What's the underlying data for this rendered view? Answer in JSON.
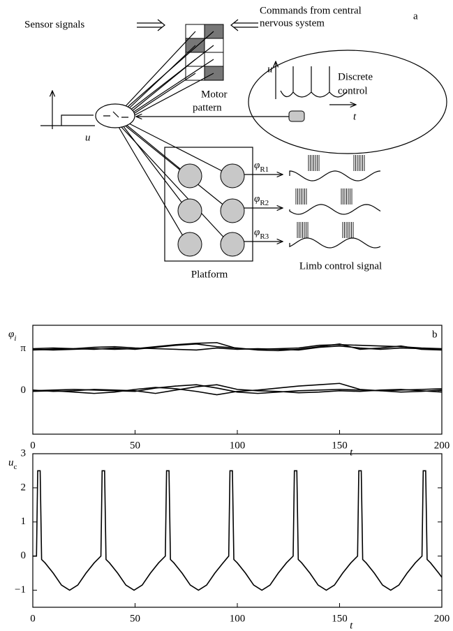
{
  "diagram": {
    "panel_label": "a",
    "sensor_label": "Sensor signals",
    "command_label": [
      "Commands from central",
      "nervous system"
    ],
    "motor_label": [
      "Motor",
      "pattern"
    ],
    "discrete_label": [
      "Discrete",
      "control"
    ],
    "u_label": "u",
    "t_label": "t",
    "phi_symbol": "φ",
    "phi_subscripts": [
      "R1",
      "R2",
      "R3"
    ],
    "platform_label": "Platform",
    "limb_label": "Limb control signal"
  },
  "chart_data": [
    {
      "type": "line",
      "panel_label": "b",
      "ylabel": "φ",
      "ylabel_sub": "i",
      "xlabel": "t",
      "x": [
        0,
        10,
        20,
        30,
        40,
        50,
        60,
        70,
        80,
        90,
        100,
        110,
        120,
        130,
        140,
        150,
        160,
        170,
        180,
        190,
        200
      ],
      "xlim": [
        0,
        200
      ],
      "xticks": [
        0,
        50,
        100,
        150,
        200
      ],
      "ylim": [
        -3.25,
        4.9
      ],
      "yticks": [
        0,
        {
          "value": 3.1416,
          "label": "π"
        }
      ],
      "series": [
        {
          "color": "#000",
          "values": [
            3.05,
            3.1,
            3.15,
            3.25,
            3.3,
            3.2,
            3.15,
            3.1,
            3.05,
            3.2,
            3.1,
            3.15,
            3.1,
            3.05,
            3.25,
            3.35,
            3.2,
            3.1,
            3.2,
            3.15,
            3.1
          ]
        },
        {
          "color": "#000",
          "values": [
            3.1,
            3.05,
            3.1,
            3.15,
            3.1,
            3.15,
            3.3,
            3.45,
            3.55,
            3.6,
            3.15,
            3.1,
            3.15,
            3.2,
            3.4,
            3.45,
            3.4,
            3.35,
            3.3,
            3.2,
            3.15
          ]
        },
        {
          "color": "#000",
          "values": [
            3.15,
            3.2,
            3.15,
            3.1,
            3.2,
            3.1,
            3.25,
            3.4,
            3.5,
            3.3,
            3.2,
            3.05,
            3.0,
            3.1,
            3.3,
            3.5,
            3.1,
            3.2,
            3.35,
            3.1,
            3.05
          ]
        },
        {
          "color": "#000",
          "values": [
            0,
            0.05,
            0.1,
            0.05,
            0,
            -0.05,
            0.2,
            0.35,
            0.45,
            0.2,
            -0.1,
            -0.2,
            -0.1,
            0,
            0.05,
            0.1,
            0.05,
            0,
            0.05,
            0.1,
            0.15
          ]
        },
        {
          "color": "#000",
          "values": [
            -0.05,
            0,
            -0.1,
            -0.2,
            -0.1,
            0.1,
            0.25,
            0.15,
            -0.05,
            -0.3,
            -0.05,
            0.05,
            0.2,
            0.35,
            0.45,
            0.55,
            0.1,
            0,
            -0.1,
            -0.05,
            0.05
          ]
        },
        {
          "color": "#000",
          "values": [
            0.05,
            -0.05,
            0,
            0.1,
            0.05,
            0,
            -0.2,
            0.05,
            0.3,
            0.45,
            0.1,
            0,
            -0.05,
            -0.15,
            -0.1,
            0,
            -0.05,
            0.05,
            0.1,
            0,
            -0.1
          ]
        }
      ]
    },
    {
      "type": "line",
      "ylabel": "u",
      "ylabel_sub": "c",
      "xlabel": "t",
      "xlim": [
        0,
        200
      ],
      "xticks": [
        0,
        50,
        100,
        150,
        200
      ],
      "ylim": [
        -1.5,
        3
      ],
      "yticks": [
        {
          "value": -1,
          "label": "−1"
        },
        0,
        1,
        2,
        3
      ],
      "color": "#000",
      "x": [
        0,
        1.8,
        2.4,
        3.6,
        4.3,
        6,
        10,
        14,
        18,
        22,
        26,
        30,
        33.3,
        33.9,
        35.1,
        35.8,
        37.5,
        41.5,
        45.5,
        49.5,
        53.5,
        57.5,
        61.5,
        64.8,
        65.4,
        66.6,
        67.3,
        69,
        73,
        77,
        81,
        85,
        89,
        93,
        95.8,
        96.4,
        97.6,
        98.3,
        100,
        104,
        108,
        112,
        116,
        120,
        124,
        127.3,
        127.9,
        129.1,
        129.8,
        131.5,
        135.5,
        139.5,
        143.5,
        147.5,
        151.5,
        155.5,
        158.8,
        159.4,
        160.6,
        161.3,
        163,
        167,
        171,
        175,
        179,
        183,
        187,
        190.3,
        190.9,
        192.1,
        192.8,
        194.5,
        198.5,
        200
      ],
      "values": [
        0,
        0,
        2.5,
        2.5,
        -0.1,
        -0.2,
        -0.5,
        -0.85,
        -1,
        -0.85,
        -0.5,
        -0.2,
        0,
        2.5,
        2.5,
        -0.1,
        -0.2,
        -0.5,
        -0.85,
        -1,
        -0.85,
        -0.5,
        -0.2,
        0,
        2.5,
        2.5,
        -0.1,
        -0.2,
        -0.5,
        -0.85,
        -1,
        -0.85,
        -0.5,
        -0.2,
        0,
        2.5,
        2.5,
        -0.1,
        -0.2,
        -0.5,
        -0.85,
        -1,
        -0.85,
        -0.5,
        -0.2,
        0,
        2.5,
        2.5,
        -0.1,
        -0.2,
        -0.5,
        -0.85,
        -1,
        -0.85,
        -0.5,
        -0.2,
        0,
        2.5,
        2.5,
        -0.1,
        -0.2,
        -0.5,
        -0.85,
        -1,
        -0.85,
        -0.5,
        -0.2,
        0,
        2.5,
        2.5,
        -0.1,
        -0.2,
        -0.5,
        -0.62
      ]
    }
  ]
}
